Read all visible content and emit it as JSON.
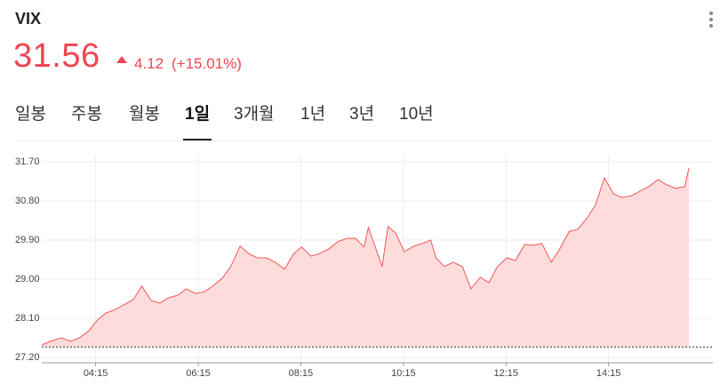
{
  "header": {
    "symbol": "VIX",
    "price": 31.56,
    "change": "4.12",
    "change_percent": "(+15.01%)"
  },
  "tabs": [
    "일봉",
    "주봉",
    "월봉",
    "1일",
    "3개월",
    "1년",
    "3년",
    "10년"
  ],
  "active_tab": 3,
  "chart_data": {
    "type": "area",
    "series": [
      {
        "color": "#f05656",
        "x": [
          "03:12",
          "03:25",
          "03:35",
          "03:46",
          "03:56",
          "04:07",
          "04:17",
          "04:27",
          "04:38",
          "04:48",
          "04:59",
          "05:09",
          "05:20",
          "05:30",
          "05:40",
          "05:51",
          "06:01",
          "06:12",
          "06:22",
          "06:32",
          "06:43",
          "06:53",
          "07:04",
          "07:14",
          "07:24",
          "07:35",
          "07:45",
          "07:56",
          "08:06",
          "08:16",
          "08:27",
          "08:37",
          "08:48",
          "08:58",
          "09:09",
          "09:19",
          "09:29",
          "09:34",
          "09:40",
          "09:50",
          "09:57",
          "10:06",
          "10:16",
          "10:27",
          "10:37",
          "10:47",
          "10:53",
          "11:03",
          "11:13",
          "11:24",
          "11:34",
          "11:45",
          "11:55",
          "12:05",
          "12:16",
          "12:26",
          "12:37",
          "12:47",
          "12:57",
          "13:08",
          "13:18",
          "13:29",
          "13:39",
          "13:50",
          "14:00",
          "14:10",
          "14:21",
          "14:31",
          "14:42",
          "14:52",
          "15:02",
          "15:13",
          "15:23",
          "15:34",
          "15:44",
          "15:49"
        ],
        "values": [
          27.49,
          27.59,
          27.65,
          27.57,
          27.65,
          27.81,
          28.06,
          28.22,
          28.3,
          28.41,
          28.53,
          28.84,
          28.51,
          28.45,
          28.57,
          28.63,
          28.78,
          28.67,
          28.71,
          28.84,
          29.02,
          29.29,
          29.76,
          29.59,
          29.49,
          29.49,
          29.39,
          29.23,
          29.57,
          29.74,
          29.53,
          29.59,
          29.7,
          29.86,
          29.94,
          29.94,
          29.74,
          30.19,
          29.86,
          29.29,
          30.21,
          30.06,
          29.63,
          29.76,
          29.82,
          29.9,
          29.49,
          29.29,
          29.39,
          29.29,
          28.78,
          29.04,
          28.92,
          29.29,
          29.49,
          29.43,
          29.8,
          29.78,
          29.82,
          29.39,
          29.7,
          30.1,
          30.15,
          30.41,
          30.72,
          31.33,
          30.96,
          30.88,
          30.92,
          31.03,
          31.13,
          31.29,
          31.17,
          31.09,
          31.13,
          31.56
        ]
      }
    ],
    "fill_color": "#ffdcdc",
    "reference_line": 27.44,
    "xlim": [
      "03:12",
      "16:17"
    ],
    "xticks": [
      "04:15",
      "06:15",
      "08:15",
      "10:15",
      "12:15",
      "14:15"
    ],
    "ylim": [
      27.2,
      31.7
    ],
    "yticks": [
      {
        "value": 27.2,
        "label": "27.20"
      },
      {
        "value": 28.1,
        "label": "28.10"
      },
      {
        "value": 29.0,
        "label": "29.00"
      },
      {
        "value": 29.9,
        "label": "29.90"
      },
      {
        "value": 30.8,
        "label": "30.80"
      },
      {
        "value": 31.7,
        "label": "31.70"
      }
    ],
    "grid": true
  }
}
